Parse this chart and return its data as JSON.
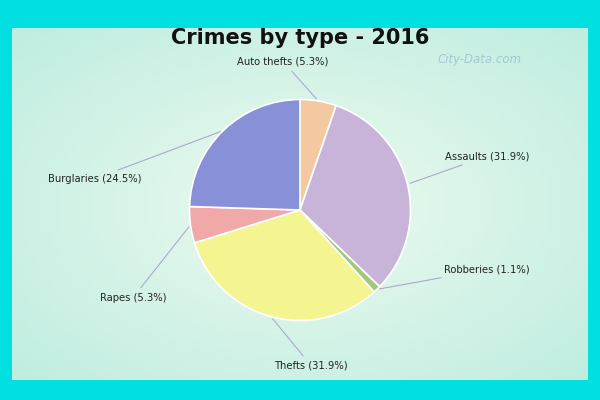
{
  "title": "Crimes by type - 2016",
  "labels": [
    "Assaults",
    "Robberies",
    "Thefts",
    "Rapes",
    "Burglaries",
    "Auto thefts"
  ],
  "values": [
    31.9,
    1.1,
    31.9,
    5.3,
    24.5,
    5.3
  ],
  "colors": [
    "#c8b4d8",
    "#a0c878",
    "#f4f490",
    "#f0a8a8",
    "#8890d8",
    "#f4c8a0"
  ],
  "label_texts": [
    "Assaults (31.9%)",
    "Robberies (1.1%)",
    "Thefts (31.9%)",
    "Rapes (5.3%)",
    "Burglaries (24.5%)",
    "Auto thefts (5.3%)"
  ],
  "border_color": "#00e0e0",
  "bg_center": "#e8f8f0",
  "bg_edge": "#c0f0e8",
  "title_fontsize": 15,
  "watermark": "City-Data.com",
  "startangle": 90,
  "border_thickness": 12
}
